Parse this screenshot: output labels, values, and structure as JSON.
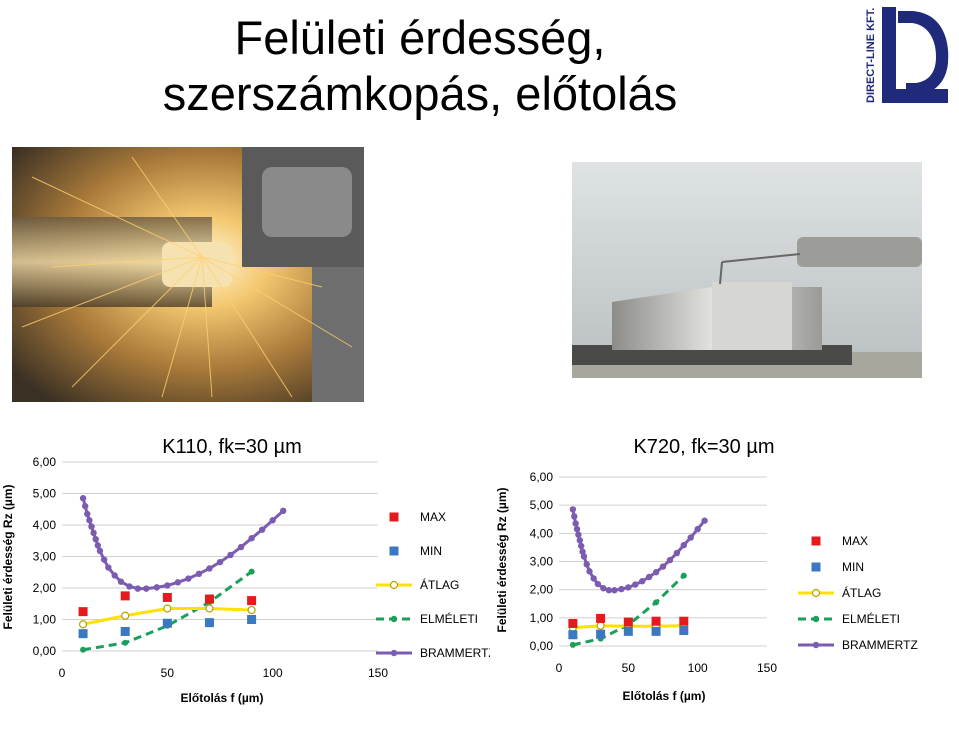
{
  "slide": {
    "title_line1": "Felületi érdesség,",
    "title_line2": "szerszámkopás, előtolás",
    "logo_text": "DIRECT-LINE KFT."
  },
  "colors": {
    "max": "#e41a1c",
    "min": "#3a78c2",
    "atlag": "#ffe000",
    "elmeleti": "#1aa05a",
    "brammertz": "#7b5cb0"
  },
  "chart_data": [
    {
      "type": "scatter",
      "title": "K110, fk=30 µm",
      "xlabel": "Előtolás f (µm)",
      "ylabel": "Felületi érdesség Rz (µm)",
      "xlim": [
        0,
        150
      ],
      "ylim": [
        0,
        6
      ],
      "xticks": [
        "0",
        "50",
        "100",
        "150"
      ],
      "yticks": [
        "0,00",
        "1,00",
        "2,00",
        "3,00",
        "4,00",
        "5,00",
        "6,00"
      ],
      "grid": true,
      "legend_position": "right",
      "series": [
        {
          "name": "MAX",
          "x": [
            10,
            30,
            50,
            70,
            90
          ],
          "y": [
            1.25,
            1.75,
            1.7,
            1.65,
            1.6
          ]
        },
        {
          "name": "MIN",
          "x": [
            10,
            30,
            50,
            70,
            90
          ],
          "y": [
            0.55,
            0.62,
            0.88,
            0.9,
            1.0
          ]
        },
        {
          "name": "ÁTLAG",
          "x": [
            10,
            30,
            50,
            70,
            90
          ],
          "y": [
            0.85,
            1.12,
            1.35,
            1.35,
            1.3
          ]
        },
        {
          "name": "ELMÉLETI",
          "x": [
            10,
            30,
            50,
            70,
            90
          ],
          "y": [
            0.04,
            0.26,
            0.8,
            1.55,
            2.52
          ]
        },
        {
          "name": "BRAMMERTZ",
          "x": [
            10,
            11,
            12,
            13,
            14,
            15,
            16,
            17,
            18,
            20,
            22,
            25,
            28,
            32,
            36,
            40,
            45,
            50,
            55,
            60,
            65,
            70,
            75,
            80,
            85,
            90,
            95,
            100,
            105
          ],
          "y": [
            4.85,
            4.6,
            4.35,
            4.15,
            3.95,
            3.75,
            3.55,
            3.35,
            3.18,
            2.9,
            2.65,
            2.4,
            2.2,
            2.05,
            1.98,
            1.98,
            2.02,
            2.08,
            2.18,
            2.3,
            2.45,
            2.62,
            2.82,
            3.05,
            3.3,
            3.58,
            3.85,
            4.15,
            4.45
          ]
        }
      ]
    },
    {
      "type": "scatter",
      "title": "K720, fk=30 µm",
      "xlabel": "Előtolás f (µm)",
      "ylabel": "Felületi érdesség Rz (µm)",
      "xlim": [
        0,
        150
      ],
      "ylim": [
        0,
        6
      ],
      "xticks": [
        "0",
        "50",
        "100",
        "150"
      ],
      "yticks": [
        "0,00",
        "1,00",
        "2,00",
        "3,00",
        "4,00",
        "5,00",
        "6,00"
      ],
      "grid": true,
      "legend_position": "right",
      "series": [
        {
          "name": "MAX",
          "x": [
            10,
            30,
            50,
            70,
            90
          ],
          "y": [
            0.8,
            0.98,
            0.85,
            0.88,
            0.88
          ]
        },
        {
          "name": "MIN",
          "x": [
            10,
            30,
            50,
            70,
            90
          ],
          "y": [
            0.4,
            0.42,
            0.52,
            0.52,
            0.55
          ]
        },
        {
          "name": "ÁTLAG",
          "x": [
            10,
            30,
            50,
            70,
            90
          ],
          "y": [
            0.65,
            0.72,
            0.7,
            0.7,
            0.72
          ]
        },
        {
          "name": "ELMÉLETI",
          "x": [
            10,
            30,
            50,
            70,
            90
          ],
          "y": [
            0.04,
            0.26,
            0.75,
            1.55,
            2.5
          ]
        },
        {
          "name": "BRAMMERTZ",
          "x": [
            10,
            11,
            12,
            13,
            14,
            15,
            16,
            17,
            18,
            20,
            22,
            25,
            28,
            32,
            36,
            40,
            45,
            50,
            55,
            60,
            65,
            70,
            75,
            80,
            85,
            90,
            95,
            100,
            105
          ],
          "y": [
            4.85,
            4.6,
            4.35,
            4.15,
            3.95,
            3.75,
            3.55,
            3.35,
            3.18,
            2.9,
            2.65,
            2.4,
            2.2,
            2.05,
            1.98,
            1.98,
            2.02,
            2.08,
            2.18,
            2.3,
            2.45,
            2.62,
            2.82,
            3.05,
            3.3,
            3.58,
            3.85,
            4.15,
            4.45
          ]
        }
      ]
    }
  ]
}
